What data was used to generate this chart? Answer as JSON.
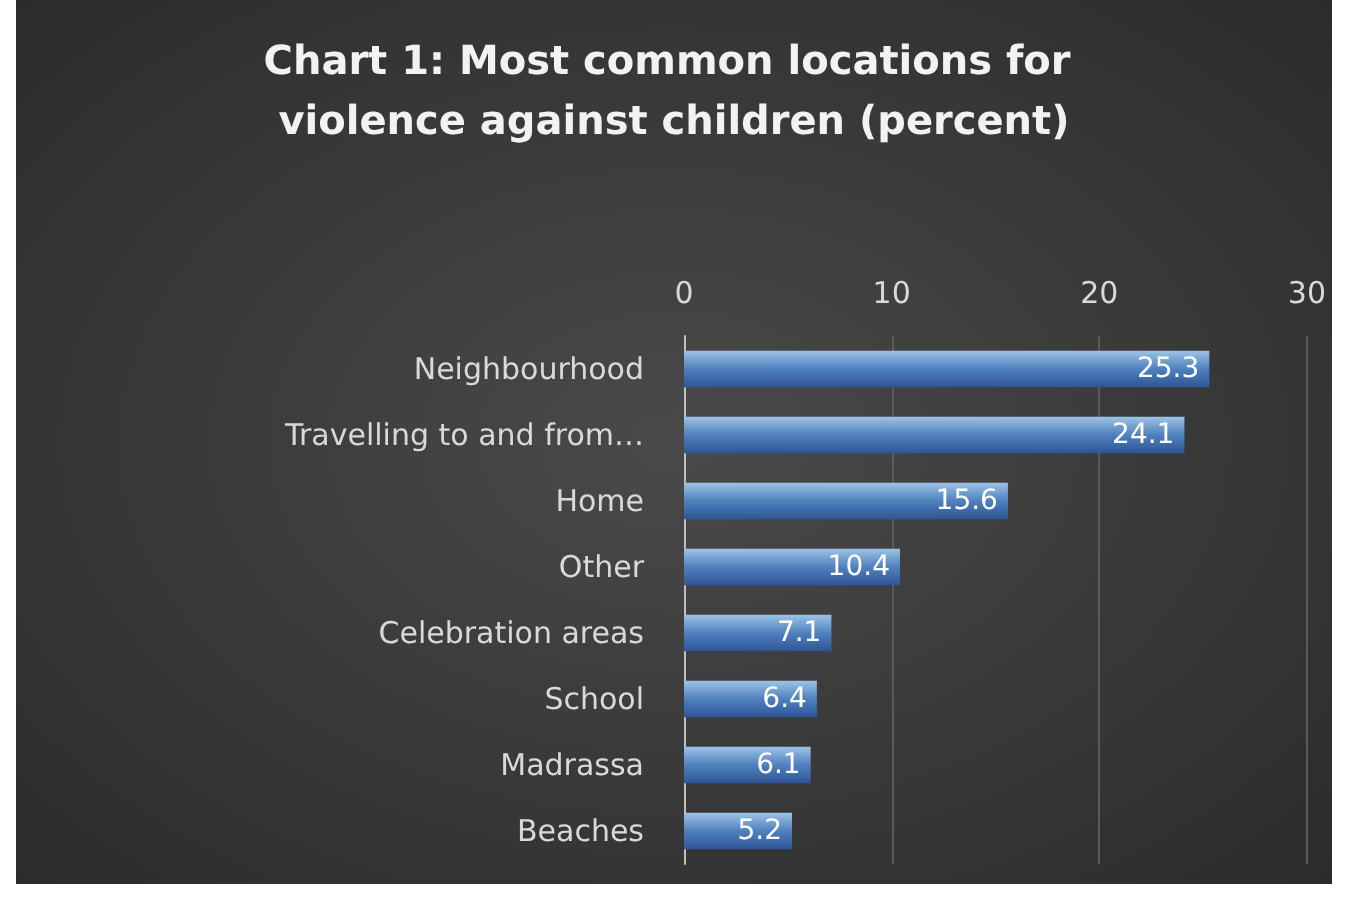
{
  "chart_data": {
    "type": "bar",
    "orientation": "horizontal",
    "title": "Chart 1: Most common locations for violence against children (percent)",
    "categories": [
      "Neighbourhood",
      "Travelling to and from…",
      "Home",
      "Other",
      "Celebration areas",
      "School",
      "Madrassa",
      "Beaches"
    ],
    "values": [
      25.3,
      24.1,
      15.6,
      10.4,
      7.1,
      6.4,
      6.1,
      5.2
    ],
    "color": "#4f81bd",
    "data_labels": true,
    "xlim": [
      0,
      30
    ],
    "xticks": [
      0,
      10,
      20,
      30
    ],
    "grid": "x"
  }
}
